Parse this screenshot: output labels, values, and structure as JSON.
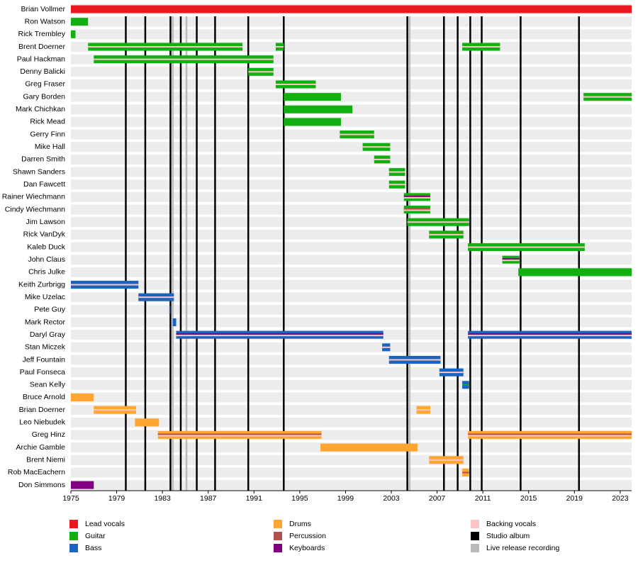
{
  "chart_data": {
    "type": "timeline",
    "xlim": [
      1975,
      2024
    ],
    "xticks": [
      1975,
      1979,
      1983,
      1987,
      1991,
      1995,
      1999,
      2003,
      2007,
      2011,
      2015,
      2019,
      2023
    ],
    "legend": [
      {
        "name": "Lead vocals",
        "color": "#e81820"
      },
      {
        "name": "Guitar",
        "color": "#10b010"
      },
      {
        "name": "Bass",
        "color": "#1a64c0"
      },
      {
        "name": "Drums",
        "color": "#ffa530"
      },
      {
        "name": "Percussion",
        "color": "#b05050"
      },
      {
        "name": "Keyboards",
        "color": "#800080"
      },
      {
        "name": "Backing vocals",
        "color": "#ffc4c4"
      },
      {
        "name": "Studio album",
        "color": "#000000"
      },
      {
        "name": "Live release recording",
        "color": "#bbbbbb"
      }
    ],
    "studio_albums": [
      1979.8,
      1981.5,
      1983.7,
      1984.6,
      1986.0,
      1987.6,
      1990.5,
      1993.6,
      2004.4,
      2007.6,
      2008.8,
      2009.9,
      2010.9,
      2014.3,
      2019.4
    ],
    "live_recordings": [
      1983.9,
      1985.1,
      2004.6
    ],
    "members": [
      {
        "name": "Brian Vollmer",
        "periods": [
          {
            "start": 1975,
            "end": 2024,
            "roles": [
              0
            ]
          }
        ]
      },
      {
        "name": "Ron Watson",
        "periods": [
          {
            "start": 1975,
            "end": 1976.5,
            "roles": [
              1
            ]
          }
        ]
      },
      {
        "name": "Rick Trembley",
        "periods": [
          {
            "start": 1975,
            "end": 1975.4,
            "roles": [
              1
            ]
          }
        ]
      },
      {
        "name": "Brent Doerner",
        "periods": [
          {
            "start": 1976.5,
            "end": 1990,
            "roles": [
              1,
              6
            ]
          },
          {
            "start": 1992.9,
            "end": 1993.6,
            "roles": [
              1,
              6
            ]
          },
          {
            "start": 2009.2,
            "end": 2012.5,
            "roles": [
              1,
              6
            ]
          }
        ]
      },
      {
        "name": "Paul Hackman",
        "periods": [
          {
            "start": 1977,
            "end": 1992.7,
            "roles": [
              1,
              6
            ]
          }
        ]
      },
      {
        "name": "Denny Balicki",
        "periods": [
          {
            "start": 1990.5,
            "end": 1992.7,
            "roles": [
              1,
              6
            ]
          }
        ]
      },
      {
        "name": "Greg Fraser",
        "periods": [
          {
            "start": 1992.9,
            "end": 1996.4,
            "roles": [
              1,
              6
            ]
          }
        ]
      },
      {
        "name": "Gary Borden",
        "periods": [
          {
            "start": 1993.6,
            "end": 1998.6,
            "roles": [
              1
            ]
          },
          {
            "start": 2019.8,
            "end": 2024,
            "roles": [
              1,
              6
            ]
          }
        ]
      },
      {
        "name": "Mark Chichkan",
        "periods": [
          {
            "start": 1993.6,
            "end": 1999.6,
            "roles": [
              1
            ]
          }
        ]
      },
      {
        "name": "Rick Mead",
        "periods": [
          {
            "start": 1993.6,
            "end": 1998.6,
            "roles": [
              1
            ]
          }
        ]
      },
      {
        "name": "Gerry Finn",
        "periods": [
          {
            "start": 1998.5,
            "end": 2001.5,
            "roles": [
              1,
              6
            ]
          }
        ]
      },
      {
        "name": "Mike Hall",
        "periods": [
          {
            "start": 2000.5,
            "end": 2002.9,
            "roles": [
              1,
              6
            ]
          }
        ]
      },
      {
        "name": "Darren Smith",
        "periods": [
          {
            "start": 2001.5,
            "end": 2002.9,
            "roles": [
              1,
              6
            ]
          }
        ]
      },
      {
        "name": "Shawn Sanders",
        "periods": [
          {
            "start": 2002.8,
            "end": 2004.2,
            "roles": [
              1,
              6
            ]
          }
        ]
      },
      {
        "name": "Dan Fawcett",
        "periods": [
          {
            "start": 2002.8,
            "end": 2004.2,
            "roles": [
              1,
              6
            ]
          }
        ]
      },
      {
        "name": "Rainer Wiechmann",
        "periods": [
          {
            "start": 2004.1,
            "end": 2006.4,
            "roles": [
              1,
              5,
              6
            ]
          }
        ]
      },
      {
        "name": "Cindy Wiechmann",
        "periods": [
          {
            "start": 2004.1,
            "end": 2006.4,
            "roles": [
              1,
              4,
              6
            ]
          }
        ]
      },
      {
        "name": "Jim Lawson",
        "periods": [
          {
            "start": 2004.4,
            "end": 2009.8,
            "roles": [
              1,
              6
            ]
          }
        ]
      },
      {
        "name": "Rick VanDyk",
        "periods": [
          {
            "start": 2006.3,
            "end": 2009.3,
            "roles": [
              1,
              6
            ]
          }
        ]
      },
      {
        "name": "Kaleb Duck",
        "periods": [
          {
            "start": 2009.7,
            "end": 2019.9,
            "roles": [
              1,
              6
            ]
          }
        ]
      },
      {
        "name": "John Claus",
        "periods": [
          {
            "start": 2012.7,
            "end": 2014.2,
            "roles": [
              1,
              5,
              6
            ]
          }
        ]
      },
      {
        "name": "Chris Julke",
        "periods": [
          {
            "start": 2014.1,
            "end": 2024,
            "roles": [
              1
            ]
          }
        ]
      },
      {
        "name": "Keith Zurbrigg",
        "periods": [
          {
            "start": 1975,
            "end": 1980.9,
            "roles": [
              2,
              6
            ]
          }
        ]
      },
      {
        "name": "Mike Uzelac",
        "periods": [
          {
            "start": 1980.9,
            "end": 1984,
            "roles": [
              2,
              6
            ]
          }
        ]
      },
      {
        "name": "Pete Guy",
        "periods": [
          {
            "start": 1983.6,
            "end": 1983.7,
            "roles": [
              2
            ]
          }
        ]
      },
      {
        "name": "Mark Rector",
        "periods": [
          {
            "start": 1983.9,
            "end": 1984.2,
            "roles": [
              2
            ]
          }
        ]
      },
      {
        "name": "Daryl Gray",
        "periods": [
          {
            "start": 1984.2,
            "end": 2002.3,
            "roles": [
              2,
              5,
              6
            ]
          },
          {
            "start": 2009.7,
            "end": 2024,
            "roles": [
              2,
              5,
              6
            ]
          }
        ]
      },
      {
        "name": "Stan Miczek",
        "periods": [
          {
            "start": 2002.2,
            "end": 2002.9,
            "roles": [
              2,
              6
            ]
          }
        ]
      },
      {
        "name": "Jeff Fountain",
        "periods": [
          {
            "start": 2002.8,
            "end": 2007.3,
            "roles": [
              2,
              6
            ]
          }
        ]
      },
      {
        "name": "Paul Fonseca",
        "periods": [
          {
            "start": 2007.2,
            "end": 2009.3,
            "roles": [
              2,
              6
            ]
          }
        ]
      },
      {
        "name": "Sean Kelly",
        "periods": [
          {
            "start": 2009.2,
            "end": 2009.8,
            "roles": [
              2,
              1
            ]
          }
        ]
      },
      {
        "name": "Bruce Arnold",
        "periods": [
          {
            "start": 1975,
            "end": 1977,
            "roles": [
              3
            ]
          }
        ]
      },
      {
        "name": "Brian Doerner",
        "periods": [
          {
            "start": 1977,
            "end": 1980.7,
            "roles": [
              3,
              6
            ]
          },
          {
            "start": 2005.2,
            "end": 2006.4,
            "roles": [
              3,
              6
            ]
          }
        ]
      },
      {
        "name": "Leo Niebudek",
        "periods": [
          {
            "start": 1980.6,
            "end": 1982.7,
            "roles": [
              3
            ]
          }
        ]
      },
      {
        "name": "Greg Hinz",
        "periods": [
          {
            "start": 1982.6,
            "end": 1996.9,
            "roles": [
              3,
              4,
              6
            ]
          },
          {
            "start": 2009.7,
            "end": 2024,
            "roles": [
              3,
              4,
              6
            ]
          }
        ]
      },
      {
        "name": "Archie Gamble",
        "periods": [
          {
            "start": 1996.8,
            "end": 2005.3,
            "roles": [
              3
            ]
          }
        ]
      },
      {
        "name": "Brent Niemi",
        "periods": [
          {
            "start": 2006.3,
            "end": 2009.3,
            "roles": [
              3,
              6
            ]
          }
        ]
      },
      {
        "name": "Rob MacEachern",
        "periods": [
          {
            "start": 2009.2,
            "end": 2009.8,
            "roles": [
              3,
              4
            ]
          }
        ]
      },
      {
        "name": "Don Simmons",
        "periods": [
          {
            "start": 1975,
            "end": 1977,
            "roles": [
              5
            ]
          }
        ]
      }
    ]
  }
}
